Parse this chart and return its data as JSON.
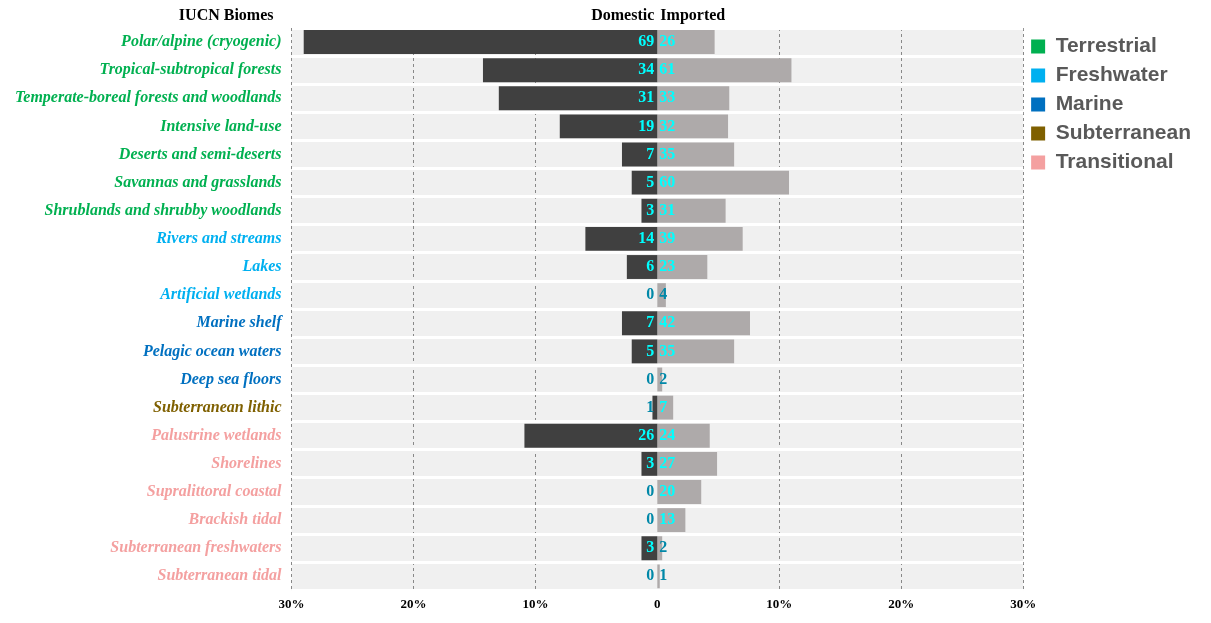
{
  "chart_data": {
    "type": "bar",
    "orientation": "horizontal",
    "ylabel": "IUCN Biomes",
    "categories": [
      "Polar/alpine (cryogenic)",
      "Tropical-subtropical forests",
      "Temperate-boreal forests and woodlands",
      "Intensive land-use",
      "Deserts and semi-deserts",
      "Savannas and grasslands",
      "Shrublands and shrubby woodlands",
      "Rivers and streams",
      "Lakes",
      "Artificial wetlands",
      "Marine shelf",
      "Pelagic ocean waters",
      "Deep sea floors",
      "Subterranean lithic",
      "Palustrine wetlands",
      "Shorelines",
      "Supralittoral coastal",
      "Brackish tidal",
      "Subterranean freshwaters",
      "Subterranean tidal"
    ],
    "series": [
      {
        "name": "Domestic",
        "color": "#404040",
        "values": [
          -29.0,
          -14.3,
          -13.0,
          -8.0,
          -2.9,
          -2.1,
          -1.3,
          -5.9,
          -2.5,
          0,
          -2.9,
          -2.1,
          0,
          -0.4,
          -10.9,
          -1.3,
          0,
          0,
          -1.3,
          0
        ]
      },
      {
        "name": "Imported",
        "color": "#aeaaaa",
        "values": [
          4.7,
          11.0,
          5.9,
          5.8,
          6.3,
          10.8,
          5.6,
          7.0,
          4.1,
          0.7,
          7.6,
          6.3,
          0.4,
          1.3,
          4.3,
          4.9,
          3.6,
          2.3,
          0.4,
          0.2
        ]
      },
      {
        "name": "Terrestrial",
        "color": "#00b050",
        "x": [
          "Polar/alpine (cryogenic)",
          "Tropical-subtropical forests",
          "Temperate-boreal forests and woodlands",
          "Intensive land-use",
          "Deserts and semi-deserts",
          "Savannas and grasslands",
          "Shrublands and shrubby woodlands"
        ],
        "values": [
          null,
          null,
          null,
          null,
          null,
          null,
          null
        ]
      },
      {
        "name": "Freshwater",
        "color": "#00b0f0",
        "x": [
          "Rivers and streams",
          "Lakes",
          "Artificial wetlands"
        ],
        "values": [
          null,
          null,
          null
        ]
      },
      {
        "name": "Marine",
        "color": "#0070c0",
        "x": [
          "Marine shelf",
          "Pelagic ocean waters",
          "Deep sea floors"
        ],
        "values": [
          null,
          null,
          null
        ]
      },
      {
        "name": "Subterranean",
        "color": "#7f6000",
        "x": [
          "Subterranean lithic"
        ],
        "values": [
          null
        ]
      },
      {
        "name": "Transitional",
        "color": "#f4a0a0",
        "x": [
          "Palustrine wetlands",
          "Shorelines",
          "Supralittoral coastal",
          "Brackish tidal",
          "Subterranean freshwaters",
          "Subterranean tidal"
        ],
        "values": [
          null,
          null,
          null,
          null,
          null,
          null
        ]
      }
    ],
    "xlim": [
      -30,
      30
    ],
    "xticks": [
      {
        "value": -30,
        "label": "30%"
      },
      {
        "value": -20,
        "label": "20%"
      },
      {
        "value": -10,
        "label": "10%"
      },
      {
        "value": 0,
        "label": "0"
      },
      {
        "value": 10,
        "label": "10%"
      },
      {
        "value": 20,
        "label": "20%"
      },
      {
        "value": 30,
        "label": "30%"
      }
    ],
    "stacked": true,
    "annotations": [
      "69",
      "26",
      "34",
      "61",
      "31",
      "33",
      "19",
      "32",
      "7",
      "35",
      "5",
      "60",
      "3",
      "31",
      "14",
      "39",
      "6",
      "23",
      "0",
      "4",
      "7",
      "42",
      "5",
      "35",
      "0",
      "2",
      "1",
      "7",
      "26",
      "24",
      "3",
      "27",
      "0",
      "20",
      "0",
      "13",
      "3",
      "2",
      "0",
      "1"
    ],
    "grid": true,
    "legend": "top right"
  }
}
